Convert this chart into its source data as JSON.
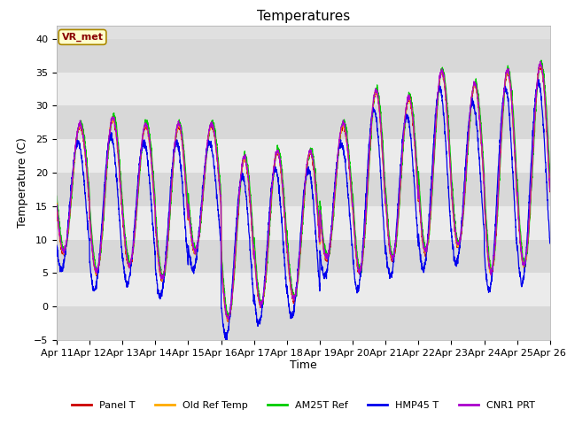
{
  "title": "Temperatures",
  "ylabel": "Temperature (C)",
  "xlabel": "Time",
  "xlim_start": 0,
  "xlim_end": 360,
  "ylim": [
    -5,
    42
  ],
  "yticks": [
    -5,
    0,
    5,
    10,
    15,
    20,
    25,
    30,
    35,
    40
  ],
  "xtick_labels": [
    "Apr 11",
    "Apr 12",
    "Apr 13",
    "Apr 14",
    "Apr 15",
    "Apr 16",
    "Apr 17",
    "Apr 18",
    "Apr 19",
    "Apr 20",
    "Apr 21",
    "Apr 22",
    "Apr 23",
    "Apr 24",
    "Apr 25",
    "Apr 26"
  ],
  "xtick_positions": [
    0,
    24,
    48,
    72,
    96,
    120,
    144,
    168,
    192,
    216,
    240,
    264,
    288,
    312,
    336,
    360
  ],
  "colors": {
    "Panel T": "#cc0000",
    "Old Ref Temp": "#ffaa00",
    "AM25T Ref": "#00cc00",
    "HMP45 T": "#0000ee",
    "CNR1 PRT": "#aa00cc"
  },
  "legend_labels": [
    "Panel T",
    "Old Ref Temp",
    "AM25T Ref",
    "HMP45 T",
    "CNR1 PRT"
  ],
  "annotation_text": "VR_met",
  "bg_color": "#e0e0e0",
  "bg_band_light": "#ebebeb",
  "bg_band_dark": "#d8d8d8",
  "title_fontsize": 11,
  "axis_fontsize": 9,
  "tick_fontsize": 8
}
